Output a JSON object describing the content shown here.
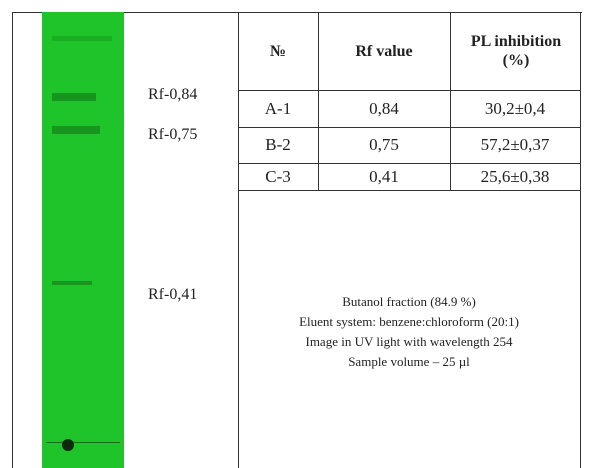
{
  "labels": [
    "Rf-0,84",
    "Rf-0,75",
    "Rf-0,41"
  ],
  "table": {
    "header": [
      "№",
      "Rf value",
      "PL inhibition (%)"
    ],
    "rows": [
      [
        "A-1",
        "0,84",
        "30,2±0,4"
      ],
      [
        "B-2",
        "0,75",
        "57,2±0,37"
      ],
      [
        "C-3",
        "0,41",
        "25,6±0,38"
      ]
    ]
  },
  "caption": [
    "Butanol fraction (84.9 %)",
    "Eluent system: benzene:chloroform (20:1)",
    "Image in UV light with wavelength 254",
    "Sample volume – 25 µl"
  ]
}
